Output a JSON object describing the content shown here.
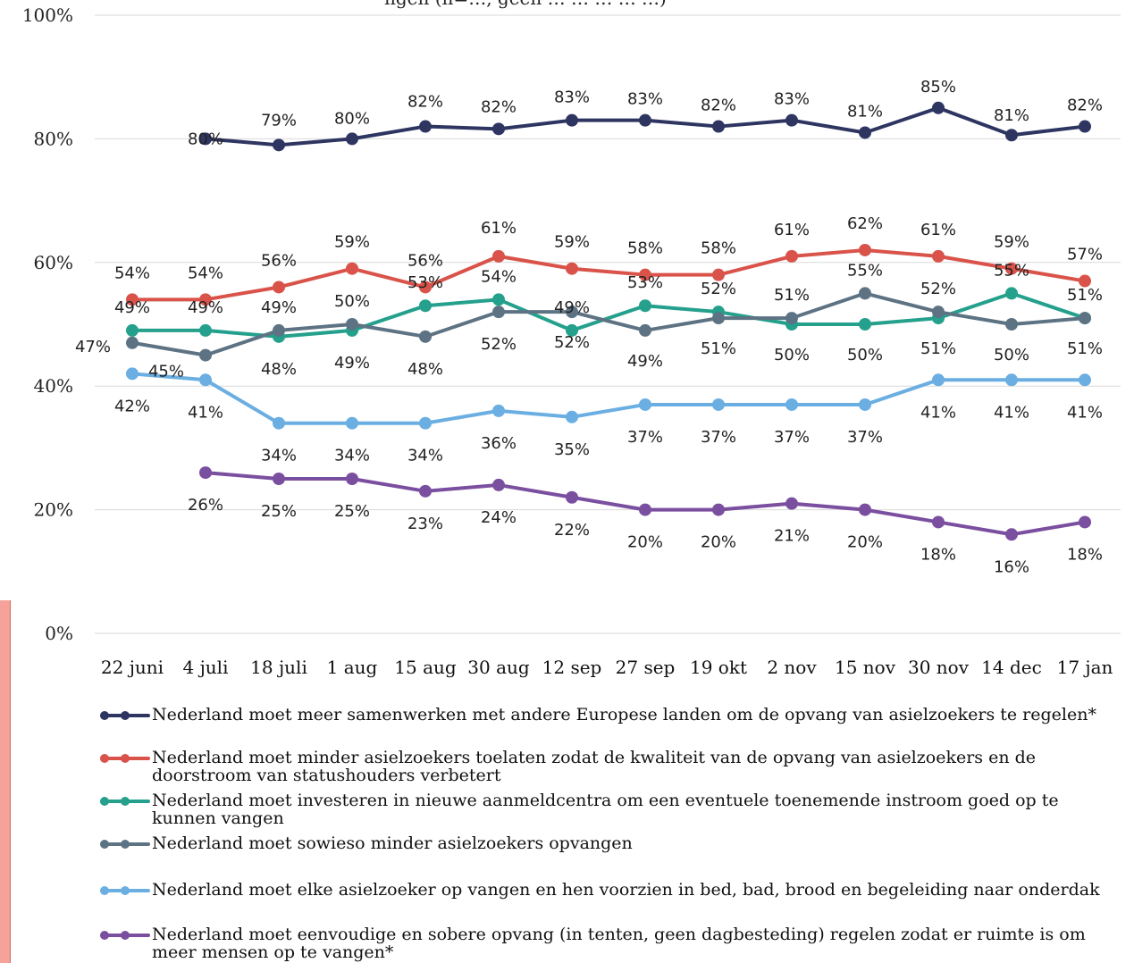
{
  "title_fragment": "ngen (n=…, geen … … … … …)",
  "chart_data": {
    "type": "line",
    "x": [
      "22 juni",
      "4 juli",
      "18 juli",
      "1 aug",
      "15 aug",
      "30 aug",
      "12 sep",
      "27 sep",
      "19 okt",
      "2 nov",
      "15 nov",
      "30 nov",
      "14 dec",
      "17 jan"
    ],
    "ylim": [
      0,
      100
    ],
    "yticks": [
      "0%",
      "20%",
      "40%",
      "60%",
      "80%",
      "100%"
    ],
    "grid": true,
    "legend_position": "bottom",
    "series": [
      {
        "name": "Nederland moet meer samenwerken met andere Europese landen om de opvang van asielzoekers te regelen*",
        "color": "#2e3561",
        "values": [
          null,
          80,
          79,
          80,
          82,
          81.6,
          83,
          83,
          82,
          83,
          81,
          85,
          80.6,
          82
        ],
        "labels": [
          "",
          "80%",
          "79%",
          "80%",
          "82%",
          "82%",
          "83%",
          "83%",
          "82%",
          "83%",
          "81%",
          "85%",
          "81%",
          "82%"
        ]
      },
      {
        "name": "Nederland moet minder asielzoekers toelaten zodat de kwaliteit van de opvang van asielzoekers en de doorstroom van statushouders verbetert",
        "color": "#d9534a",
        "values": [
          54,
          54,
          56,
          59,
          56,
          61,
          59,
          58,
          58,
          61,
          62,
          61,
          59,
          57
        ],
        "labels": [
          "54%",
          "54%",
          "56%",
          "59%",
          "56%",
          "61%",
          "59%",
          "58%",
          "58%",
          "61%",
          "62%",
          "61%",
          "59%",
          "57%"
        ]
      },
      {
        "name": "Nederland moet investeren in nieuwe aanmeldcentra om een eventuele toenemende instroom goed op te kunnen vangen",
        "color": "#24a08c",
        "values": [
          49,
          49,
          48,
          49,
          53,
          54,
          49,
          53,
          52,
          50,
          50,
          51,
          55,
          51
        ],
        "labels": [
          "49%",
          "49%",
          "48%",
          "49%",
          "53%",
          "54%",
          "49%",
          "53%",
          "52%",
          "50%",
          "50%",
          "51%",
          "55%",
          "51%"
        ]
      },
      {
        "name": "Nederland moet sowieso minder asielzoekers opvangen",
        "color": "#5d7384",
        "values": [
          47,
          45,
          49,
          50,
          48,
          52,
          52,
          49,
          51,
          51,
          55,
          52,
          50,
          51
        ],
        "labels": [
          "47%",
          "45%",
          "49%",
          "50%",
          "48%",
          "52%",
          "52%",
          "49%",
          "51%",
          "51%",
          "55%",
          "52%",
          "50%",
          "51%"
        ]
      },
      {
        "name": "Nederland moet elke asielzoeker op vangen en hen voorzien in bed, bad, brood en begeleiding naar onderdak",
        "color": "#6aaee2",
        "values": [
          42,
          41,
          34,
          34,
          34,
          36,
          35,
          37,
          37,
          37,
          37,
          41,
          41,
          41
        ],
        "labels": [
          "42%",
          "41%",
          "34%",
          "34%",
          "34%",
          "36%",
          "35%",
          "37%",
          "37%",
          "37%",
          "37%",
          "41%",
          "41%",
          "41%"
        ]
      },
      {
        "name": "Nederland moet eenvoudige en sobere opvang (in tenten, geen dagbesteding) regelen zodat er ruimte is om meer mensen op te vangen*",
        "color": "#7b4fa0",
        "values": [
          null,
          26,
          25,
          25,
          23,
          24,
          22,
          20,
          20,
          21,
          20,
          18,
          16,
          18
        ],
        "labels": [
          "",
          "26%",
          "25%",
          "25%",
          "23%",
          "24%",
          "22%",
          "20%",
          "20%",
          "21%",
          "20%",
          "18%",
          "16%",
          "18%"
        ]
      }
    ]
  }
}
